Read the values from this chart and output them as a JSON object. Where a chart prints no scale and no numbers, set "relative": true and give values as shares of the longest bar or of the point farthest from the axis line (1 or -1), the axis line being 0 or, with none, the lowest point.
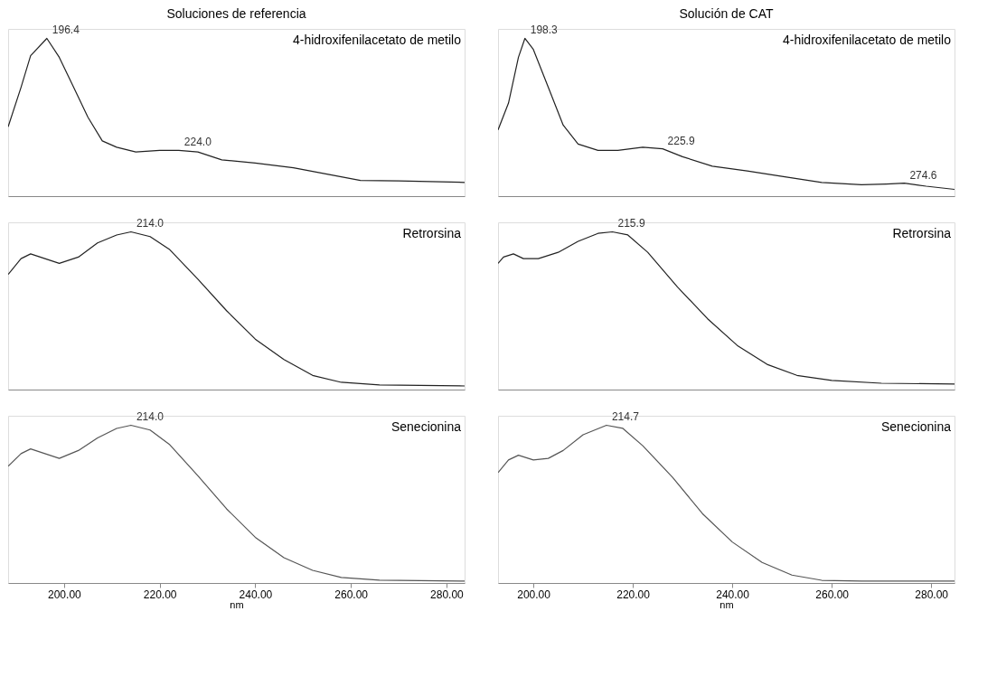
{
  "chart_data": [
    {
      "type": "line",
      "title": "Soluciones de referencia",
      "relative": true,
      "xlim": [
        188.3,
        283.8
      ],
      "tick_labels": false,
      "series": [
        {
          "color": "#222222",
          "x": [
            188.3,
            191,
            193,
            196.4,
            199,
            202,
            205,
            208,
            211,
            215,
            220,
            224,
            228,
            233,
            240,
            248,
            255,
            262,
            270,
            283.8
          ],
          "values": [
            0.44,
            0.69,
            0.89,
            1.0,
            0.88,
            0.69,
            0.5,
            0.35,
            0.31,
            0.28,
            0.29,
            0.29,
            0.28,
            0.23,
            0.21,
            0.18,
            0.14,
            0.1,
            0.097,
            0.087
          ]
        }
      ],
      "annotations": [
        "4-hidroxifenilacetato de metilo",
        {
          "text": "196.4",
          "x": 196.4,
          "y": 1.0
        },
        {
          "text": "224.0",
          "x": 224,
          "y": 0.29
        }
      ]
    },
    {
      "type": "line",
      "title": "Solución de CAT",
      "relative": true,
      "xlim": [
        192.9,
        284.7
      ],
      "tick_labels": false,
      "series": [
        {
          "color": "#222222",
          "x": [
            192.9,
            195,
            197,
            198.3,
            200,
            203,
            206,
            209,
            213,
            217,
            222,
            226,
            230,
            236,
            243,
            250,
            258,
            266,
            271,
            274.6,
            279,
            284.7
          ],
          "values": [
            0.42,
            0.59,
            0.88,
            1.0,
            0.93,
            0.69,
            0.45,
            0.33,
            0.29,
            0.29,
            0.31,
            0.3,
            0.25,
            0.19,
            0.16,
            0.125,
            0.087,
            0.072,
            0.077,
            0.082,
            0.063,
            0.043
          ]
        }
      ],
      "annotations": [
        "4-hidroxifenilacetato de metilo",
        {
          "text": "198.3",
          "x": 198.3,
          "y": 1.0
        },
        {
          "text": "225.9",
          "x": 225.9,
          "y": 0.3
        },
        {
          "text": "274.6",
          "x": 274.6,
          "y": 0.082
        }
      ]
    },
    {
      "type": "line",
      "relative": true,
      "xlim": [
        188.3,
        283.8
      ],
      "tick_labels": false,
      "series": [
        {
          "color": "#222222",
          "x": [
            188.3,
            191,
            193,
            196,
            199,
            203,
            207,
            211,
            214,
            218,
            222,
            228,
            234,
            240,
            246,
            252,
            258,
            266,
            283.8
          ],
          "values": [
            0.73,
            0.83,
            0.86,
            0.83,
            0.8,
            0.84,
            0.93,
            0.98,
            1.0,
            0.97,
            0.89,
            0.7,
            0.5,
            0.32,
            0.19,
            0.09,
            0.046,
            0.029,
            0.023
          ]
        }
      ],
      "annotations": [
        "Retrorsina",
        {
          "text": "214.0",
          "x": 214,
          "y": 1.0
        }
      ]
    },
    {
      "type": "line",
      "relative": true,
      "xlim": [
        192.9,
        284.7
      ],
      "tick_labels": false,
      "series": [
        {
          "color": "#222222",
          "x": [
            192.9,
            194,
            196,
            198,
            201,
            205,
            209,
            213,
            215.9,
            219,
            223,
            229,
            235,
            241,
            247,
            253,
            260,
            270,
            284.7
          ],
          "values": [
            0.8,
            0.84,
            0.86,
            0.83,
            0.83,
            0.87,
            0.94,
            0.99,
            1.0,
            0.98,
            0.87,
            0.65,
            0.45,
            0.28,
            0.16,
            0.09,
            0.058,
            0.04,
            0.035
          ]
        }
      ],
      "annotations": [
        "Retrorsina",
        {
          "text": "215.9",
          "x": 215.9,
          "y": 1.0
        }
      ]
    },
    {
      "type": "line",
      "relative": true,
      "xlabel": "nm",
      "xlim": [
        188.3,
        283.8
      ],
      "xticks": [
        {
          "value": 200,
          "label": "200.00"
        },
        {
          "value": 220,
          "label": "220.00"
        },
        {
          "value": 240,
          "label": "240.00"
        },
        {
          "value": 260,
          "label": "260.00"
        },
        {
          "value": 280,
          "label": "280.00"
        }
      ],
      "tick_labels": "x",
      "series": [
        {
          "color": "#555555",
          "x": [
            188.3,
            191,
            193,
            196,
            199,
            203,
            207,
            211,
            214,
            218,
            222,
            228,
            234,
            240,
            246,
            252,
            258,
            266,
            283.8
          ],
          "values": [
            0.74,
            0.82,
            0.85,
            0.82,
            0.79,
            0.84,
            0.92,
            0.98,
            1.0,
            0.97,
            0.88,
            0.68,
            0.47,
            0.29,
            0.16,
            0.08,
            0.035,
            0.018,
            0.012
          ]
        }
      ],
      "annotations": [
        "Senecionina",
        {
          "text": "214.0",
          "x": 214,
          "y": 1.0
        }
      ]
    },
    {
      "type": "line",
      "relative": true,
      "xlabel": "nm",
      "xlim": [
        192.9,
        284.7
      ],
      "xticks": [
        {
          "value": 200,
          "label": "200.00"
        },
        {
          "value": 220,
          "label": "220.00"
        },
        {
          "value": 240,
          "label": "240.00"
        },
        {
          "value": 260,
          "label": "260.00"
        },
        {
          "value": 280,
          "label": "280.00"
        }
      ],
      "tick_labels": "x",
      "series": [
        {
          "color": "#555555",
          "x": [
            192.9,
            195,
            197,
            200,
            203,
            206,
            210,
            214.7,
            218,
            222,
            228,
            234,
            240,
            246,
            252,
            258,
            266,
            284.7
          ],
          "values": [
            0.7,
            0.78,
            0.81,
            0.78,
            0.79,
            0.84,
            0.94,
            1.0,
            0.98,
            0.87,
            0.67,
            0.44,
            0.26,
            0.13,
            0.05,
            0.017,
            0.012,
            0.012
          ]
        }
      ],
      "annotations": [
        "Senecionina",
        {
          "text": "214.7",
          "x": 214.7,
          "y": 1.0
        }
      ]
    }
  ]
}
